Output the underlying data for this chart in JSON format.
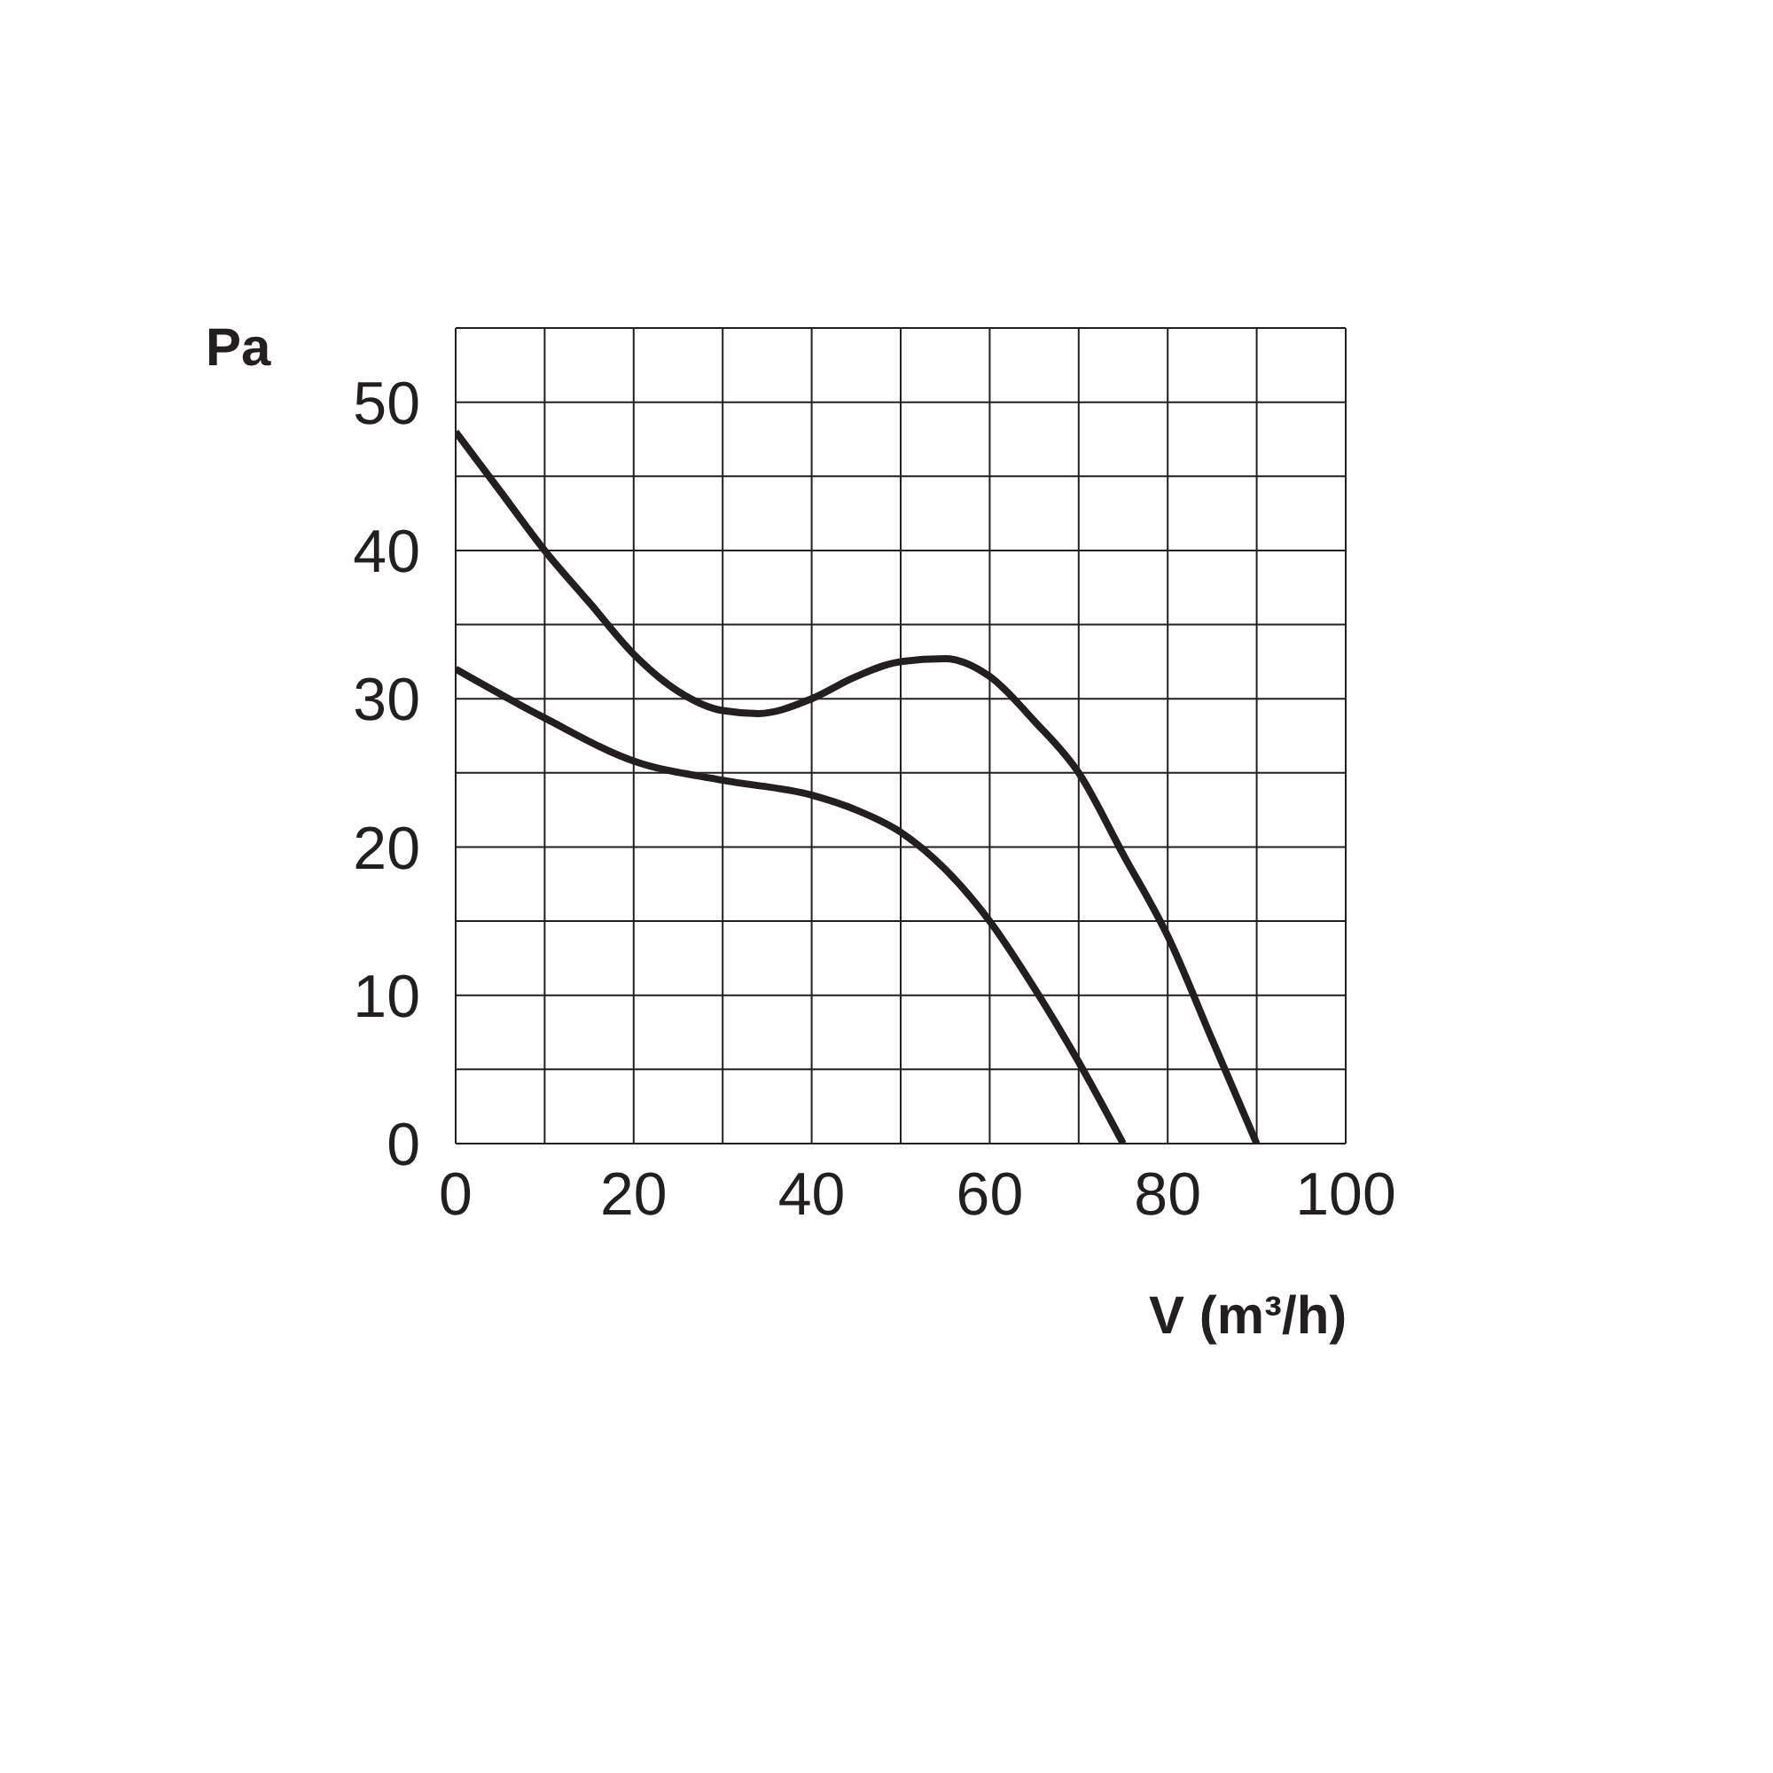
{
  "chart_data": {
    "type": "line",
    "xlabel": "V (m³/h)",
    "ylabel": "Pa",
    "xlim": [
      0,
      100
    ],
    "xticks": [
      0,
      {
        "value": 10,
        "label": null
      },
      20,
      {
        "value": 30,
        "label": null
      },
      40,
      {
        "value": 50,
        "label": null
      },
      60,
      {
        "value": 70,
        "label": null
      },
      80,
      {
        "value": 90,
        "label": null
      },
      100
    ],
    "ylim": [
      0,
      55
    ],
    "yticks": [
      0,
      {
        "value": 5,
        "label": null
      },
      10,
      {
        "value": 15,
        "label": null
      },
      20,
      {
        "value": 25,
        "label": null
      },
      30,
      {
        "value": 35,
        "label": null
      },
      40,
      {
        "value": 45,
        "label": null
      },
      50,
      {
        "value": 55,
        "label": null
      }
    ],
    "grid": true,
    "marker": "none",
    "line_style": "solid",
    "series": [
      {
        "color": "#231f20",
        "x": [
          0,
          5,
          10,
          15,
          20,
          25,
          30,
          34,
          40,
          45,
          50,
          55,
          60,
          65,
          70,
          75,
          80,
          85,
          90
        ],
        "values": [
          48,
          44,
          40,
          36.5,
          33,
          30.5,
          29.2,
          29,
          30,
          31.5,
          32.5,
          32.7,
          31.5,
          28.5,
          25,
          19.5,
          14,
          7,
          0
        ]
      },
      {
        "color": "#231f20",
        "x": [
          0,
          10,
          20,
          30,
          40,
          45,
          50,
          55,
          60,
          65,
          70,
          75
        ],
        "values": [
          32,
          28.7,
          25.8,
          24.5,
          23.5,
          22.5,
          21,
          18.5,
          15,
          10.5,
          5.5,
          0
        ]
      }
    ]
  }
}
